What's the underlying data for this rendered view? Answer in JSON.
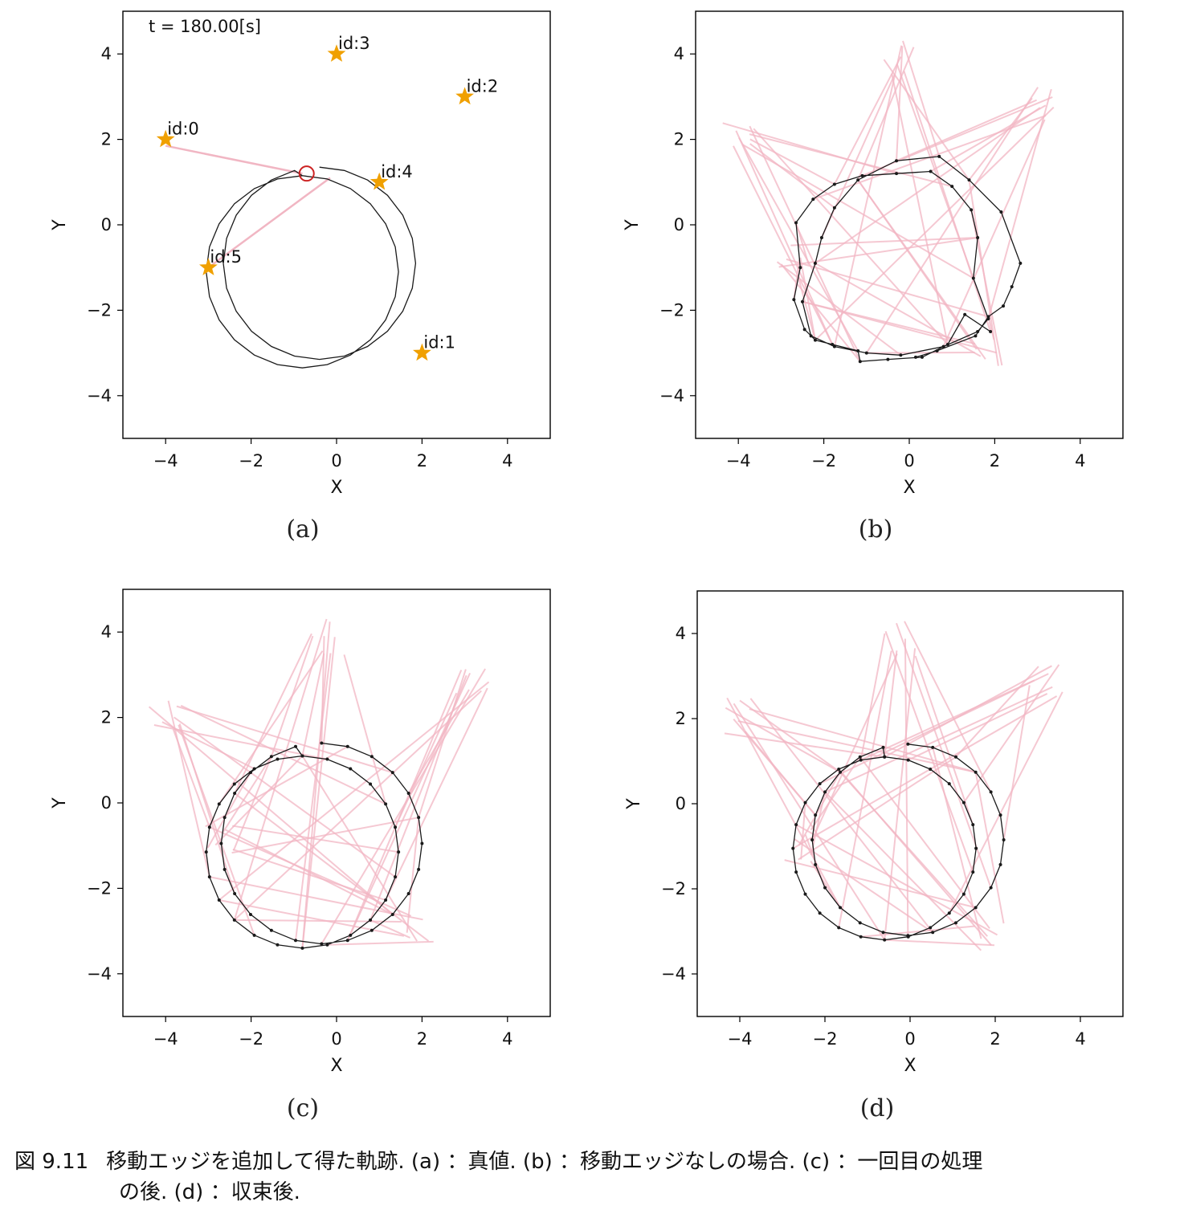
{
  "caption": {
    "number": "図 9.11",
    "line1": "移動エッジを追加して得た軌跡. (a) ：真値. (b) ：移動エッジなしの場合. (c) ：一回目の処理",
    "line2": "の後. (d) ：収束後."
  },
  "style": {
    "trajectory_color": "#1a1a1a",
    "edge_color": "#f1b6c3",
    "landmark_color": "#f0a000",
    "robot_color": "#cc2222"
  },
  "chart_data": [
    {
      "type": "line",
      "panel_label": "(a)",
      "annotation": "t = 180.00[s]",
      "xlabel": "X",
      "ylabel": "Y",
      "xlim": [
        -5,
        5
      ],
      "ylim": [
        -5,
        5
      ],
      "xticks": [
        -4,
        -2,
        0,
        2,
        4
      ],
      "yticks": [
        -4,
        -2,
        0,
        2,
        4
      ],
      "xtick_labels": [
        "−4",
        "−2",
        "0",
        "2",
        "4"
      ],
      "ytick_labels": [
        "−4",
        "−2",
        "0",
        "2",
        "4"
      ],
      "landmarks": [
        {
          "label": "id:0",
          "x": -4,
          "y": 2
        },
        {
          "label": "id:1",
          "x": 2,
          "y": -3
        },
        {
          "label": "id:2",
          "x": 3,
          "y": 3
        },
        {
          "label": "id:3",
          "x": 0,
          "y": 4
        },
        {
          "label": "id:4",
          "x": 1,
          "y": 1
        },
        {
          "label": "id:5",
          "x": -3,
          "y": -1
        }
      ],
      "robot": {
        "x": -0.7,
        "y": 1.2
      },
      "observation_lines": [
        {
          "from": [
            -4,
            1.85
          ],
          "to": [
            -0.8,
            1.2
          ]
        },
        {
          "from": [
            -3,
            -1
          ],
          "to": [
            -0.15,
            1.1
          ]
        }
      ],
      "trajectory_loops": [
        {
          "cx": -0.8,
          "cy": -1.1,
          "r": 2.25
        },
        {
          "cx": -0.4,
          "cy": -0.9,
          "r": 2.25
        }
      ]
    },
    {
      "type": "line",
      "panel_label": "(b)",
      "xlabel": "X",
      "ylabel": "Y",
      "xlim": [
        -5,
        5
      ],
      "ylim": [
        -5,
        5
      ],
      "xticks": [
        -4,
        -2,
        0,
        2,
        4
      ],
      "yticks": [
        -4,
        -2,
        0,
        2,
        4
      ],
      "xtick_labels": [
        "−4",
        "−2",
        "0",
        "2",
        "4"
      ],
      "ytick_labels": [
        "−4",
        "−2",
        "0",
        "2",
        "4"
      ],
      "trajectory": [
        [
          1.9,
          -2.5
        ],
        [
          1.3,
          -2.1
        ],
        [
          0.9,
          -2.8
        ],
        [
          0.3,
          -3.1
        ],
        [
          -0.5,
          -3.15
        ],
        [
          -1.15,
          -3.2
        ],
        [
          -1.2,
          -2.95
        ],
        [
          -1.8,
          -2.8
        ],
        [
          -2.2,
          -2.7
        ],
        [
          -2.45,
          -2.45
        ],
        [
          -2.7,
          -1.75
        ],
        [
          -2.55,
          -1.0
        ],
        [
          -2.65,
          0.05
        ],
        [
          -2.25,
          0.6
        ],
        [
          -1.75,
          0.95
        ],
        [
          -1.1,
          1.15
        ],
        [
          -0.3,
          1.2
        ],
        [
          0.5,
          1.25
        ],
        [
          1.0,
          0.9
        ],
        [
          1.45,
          0.35
        ],
        [
          1.6,
          -0.3
        ],
        [
          1.5,
          -1.25
        ],
        [
          1.85,
          -2.2
        ],
        [
          1.6,
          -2.5
        ],
        [
          0.8,
          -2.85
        ],
        [
          -0.2,
          -3.05
        ],
        [
          -1.0,
          -3.0
        ],
        [
          -1.75,
          -2.85
        ],
        [
          -2.3,
          -2.6
        ],
        [
          -2.5,
          -1.8
        ],
        [
          -2.2,
          -0.9
        ],
        [
          -2.05,
          -0.3
        ],
        [
          -1.75,
          0.4
        ],
        [
          -1.2,
          1.05
        ],
        [
          -0.3,
          1.5
        ],
        [
          0.7,
          1.6
        ],
        [
          1.4,
          1.05
        ],
        [
          2.15,
          0.3
        ],
        [
          2.6,
          -0.9
        ],
        [
          2.4,
          -1.45
        ],
        [
          2.2,
          -1.9
        ],
        [
          1.85,
          -2.15
        ],
        [
          1.55,
          -2.6
        ],
        [
          0.65,
          -2.95
        ],
        [
          0.15,
          -3.1
        ]
      ],
      "edge_count": 48
    },
    {
      "type": "line",
      "panel_label": "(c)",
      "xlabel": "X",
      "ylabel": "Y",
      "xlim": [
        -5,
        5
      ],
      "ylim": [
        -5,
        5
      ],
      "xticks": [
        -4,
        -2,
        0,
        2,
        4
      ],
      "yticks": [
        -4,
        -2,
        0,
        2,
        4
      ],
      "xtick_labels": [
        "−4",
        "−2",
        "0",
        "2",
        "4"
      ],
      "ytick_labels": [
        "−4",
        "−2",
        "0",
        "2",
        "4"
      ],
      "trajectory_loops": [
        {
          "cx": -0.8,
          "cy": -1.15,
          "r": 2.25
        },
        {
          "cx": -0.35,
          "cy": -0.95,
          "r": 2.35
        }
      ],
      "edge_count": 48
    },
    {
      "type": "line",
      "panel_label": "(d)",
      "xlabel": "X",
      "ylabel": "Y",
      "xlim": [
        -5,
        5
      ],
      "ylim": [
        -5,
        5
      ],
      "xticks": [
        -4,
        -2,
        0,
        2,
        4
      ],
      "yticks": [
        -4,
        -2,
        0,
        2,
        4
      ],
      "xtick_labels": [
        "−4",
        "−2",
        "0",
        "2",
        "4"
      ],
      "ytick_labels": [
        "−4",
        "−2",
        "0",
        "2",
        "4"
      ],
      "trajectory_loops": [
        {
          "cx": -0.6,
          "cy": -1.05,
          "r": 2.15
        },
        {
          "cx": -0.05,
          "cy": -0.85,
          "r": 2.25
        }
      ],
      "edge_count": 48
    }
  ]
}
